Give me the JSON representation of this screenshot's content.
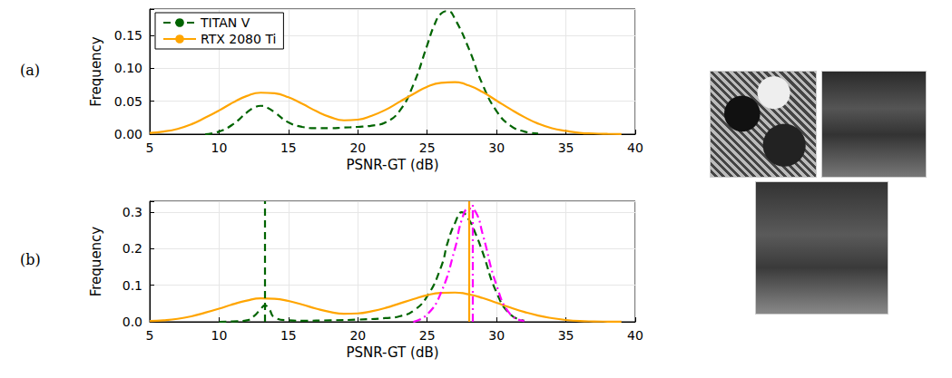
{
  "chart_data": [
    {
      "type": "line",
      "panel": "(a)",
      "x_label": "PSNR-GT (dB)",
      "y_label": "Frequency",
      "xlim": [
        5,
        40
      ],
      "xticks": [
        5,
        10,
        15,
        20,
        25,
        30,
        35,
        40
      ],
      "ylim": [
        0,
        0.19
      ],
      "yticks": [
        {
          "value": 0,
          "label": "0.00"
        },
        {
          "value": 0.05,
          "label": "0.05"
        },
        {
          "value": 0.1,
          "label": "0.10"
        },
        {
          "value": 0.15,
          "label": "0.15"
        }
      ],
      "grid": true,
      "legend": "upper left",
      "series": [
        {
          "name": "TITAN V",
          "color": "#006400",
          "line_style": "dashed",
          "x": [
            9,
            10,
            11,
            12,
            12.5,
            13,
            13.5,
            14,
            15,
            16,
            17,
            18,
            19,
            20,
            21,
            22,
            23,
            24,
            25,
            25.5,
            26,
            26.5,
            27,
            28,
            29,
            30,
            31,
            32,
            33
          ],
          "values": [
            0,
            0.004,
            0.015,
            0.033,
            0.04,
            0.043,
            0.04,
            0.033,
            0.018,
            0.011,
            0.009,
            0.009,
            0.01,
            0.011,
            0.013,
            0.018,
            0.035,
            0.075,
            0.135,
            0.165,
            0.183,
            0.187,
            0.175,
            0.13,
            0.075,
            0.035,
            0.013,
            0.004,
            0.001
          ]
        },
        {
          "name": "RTX 2080 Ti",
          "color": "#ffa500",
          "line_style": "solid",
          "x": [
            5,
            6,
            7,
            8,
            9,
            10,
            11,
            12,
            13,
            14,
            15,
            16,
            17,
            18,
            19,
            20,
            21,
            22,
            23,
            24,
            25,
            26,
            27,
            28,
            29,
            30,
            31,
            32,
            33,
            34,
            35,
            36,
            37,
            38,
            39
          ],
          "values": [
            0.002,
            0.004,
            0.008,
            0.015,
            0.025,
            0.036,
            0.048,
            0.058,
            0.063,
            0.062,
            0.056,
            0.046,
            0.035,
            0.026,
            0.021,
            0.022,
            0.028,
            0.037,
            0.049,
            0.061,
            0.072,
            0.078,
            0.079,
            0.074,
            0.064,
            0.051,
            0.038,
            0.026,
            0.016,
            0.009,
            0.005,
            0.002,
            0.001,
            0.0005,
            0.0002
          ]
        }
      ]
    },
    {
      "type": "line",
      "panel": "(b)",
      "x_label": "PSNR-GT (dB)",
      "y_label": "Frequency",
      "xlim": [
        5,
        40
      ],
      "xticks": [
        5,
        10,
        15,
        20,
        25,
        30,
        35,
        40
      ],
      "ylim": [
        0,
        0.33
      ],
      "yticks": [
        {
          "value": 0,
          "label": "0.0"
        },
        {
          "value": 0.1,
          "label": "0.1"
        },
        {
          "value": 0.2,
          "label": "0.2"
        },
        {
          "value": 0.3,
          "label": "0.3"
        }
      ],
      "grid": true,
      "series": [
        {
          "color": "#006400",
          "line_style": "dashed",
          "x": [
            10,
            11,
            12,
            12.5,
            13,
            13.3,
            13.6,
            14,
            15,
            16,
            18,
            20,
            22,
            23,
            24,
            25,
            26,
            26.5,
            27,
            27.5,
            28,
            28.5,
            29,
            30,
            31,
            32
          ],
          "values": [
            0,
            0.001,
            0.004,
            0.015,
            0.035,
            0.045,
            0.035,
            0.012,
            0.004,
            0.003,
            0.004,
            0.006,
            0.01,
            0.015,
            0.03,
            0.07,
            0.15,
            0.22,
            0.27,
            0.3,
            0.28,
            0.24,
            0.19,
            0.08,
            0.02,
            0.003
          ]
        },
        {
          "color": "#ffa500",
          "line_style": "solid",
          "x": [
            5,
            6,
            7,
            8,
            9,
            10,
            11,
            12,
            13,
            14,
            15,
            16,
            17,
            18,
            19,
            20,
            21,
            22,
            23,
            24,
            25,
            26,
            27,
            28,
            29,
            30,
            31,
            32,
            33,
            34,
            35,
            36,
            37,
            38,
            39
          ],
          "values": [
            0.002,
            0.004,
            0.008,
            0.015,
            0.025,
            0.036,
            0.048,
            0.058,
            0.064,
            0.063,
            0.057,
            0.047,
            0.036,
            0.027,
            0.022,
            0.023,
            0.029,
            0.038,
            0.05,
            0.062,
            0.073,
            0.079,
            0.08,
            0.075,
            0.065,
            0.052,
            0.039,
            0.027,
            0.017,
            0.01,
            0.005,
            0.002,
            0.001,
            0.0005,
            0.0002
          ]
        },
        {
          "color": "#ff00ff",
          "line_style": "dashdot",
          "x": [
            24,
            25,
            26,
            27,
            27.5,
            28,
            28.5,
            29,
            30,
            31,
            32
          ],
          "values": [
            0,
            0.02,
            0.08,
            0.2,
            0.28,
            0.31,
            0.3,
            0.24,
            0.1,
            0.02,
            0.002
          ]
        }
      ],
      "vlines": [
        {
          "x": 13.3,
          "color": "#006400",
          "line_style": "dashed"
        },
        {
          "x": 28.0,
          "color": "#ffa500",
          "line_style": "solid"
        },
        {
          "x": 28.3,
          "color": "#ff00ff",
          "line_style": "dashdot"
        }
      ]
    }
  ]
}
